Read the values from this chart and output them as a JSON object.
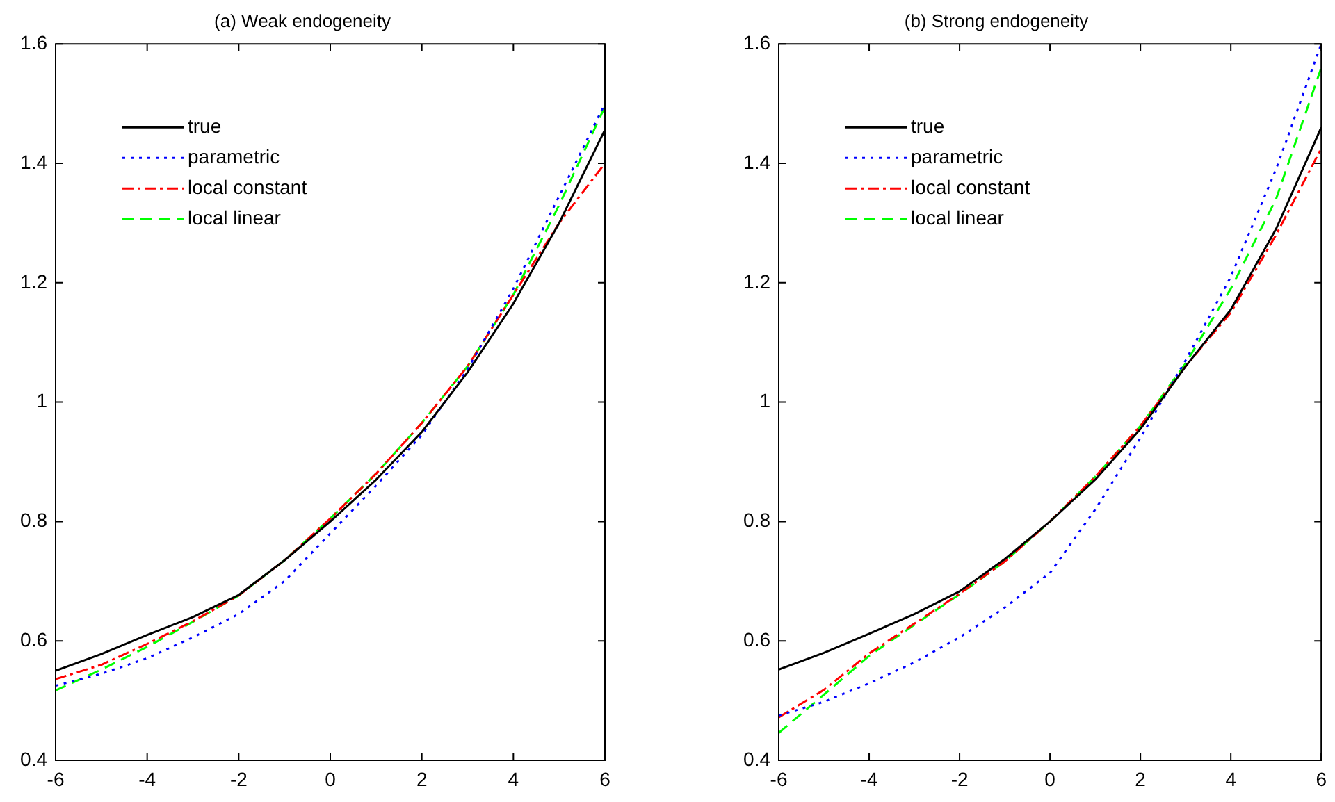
{
  "chart_data": [
    {
      "type": "line",
      "title": "(a) Weak endogeneity",
      "x": [
        -6,
        -5,
        -4,
        -3,
        -2,
        -1,
        0,
        1,
        2,
        3,
        4,
        5,
        6
      ],
      "xlim": [
        -6,
        6
      ],
      "xticks": [
        -6,
        -4,
        -2,
        0,
        2,
        4,
        6
      ],
      "ylim": [
        0.4,
        1.6
      ],
      "yticks": [
        0.4,
        0.6,
        0.8,
        1,
        1.2,
        1.4,
        1.6
      ],
      "grid": false,
      "legend": "top left",
      "marker": "none",
      "series": [
        {
          "name": "true",
          "color": "#000000",
          "line_style": "solid",
          "values": [
            0.55,
            0.578,
            0.61,
            0.64,
            0.677,
            0.735,
            0.8,
            0.87,
            0.95,
            1.05,
            1.165,
            1.3,
            1.456
          ]
        },
        {
          "name": "parametric",
          "color": "#0000ff",
          "line_style": "dotted",
          "values": [
            0.525,
            0.545,
            0.571,
            0.606,
            0.645,
            0.7,
            0.78,
            0.86,
            0.945,
            1.055,
            1.19,
            1.345,
            1.5
          ]
        },
        {
          "name": "local constant",
          "color": "#ff0000",
          "line_style": "dashdot",
          "values": [
            0.536,
            0.56,
            0.595,
            0.633,
            0.676,
            0.735,
            0.805,
            0.88,
            0.965,
            1.06,
            1.18,
            1.3,
            1.4
          ]
        },
        {
          "name": "local linear",
          "color": "#00ff00",
          "line_style": "dashed",
          "values": [
            0.517,
            0.552,
            0.59,
            0.632,
            0.676,
            0.735,
            0.805,
            0.88,
            0.965,
            1.06,
            1.18,
            1.33,
            1.495
          ]
        }
      ]
    },
    {
      "type": "line",
      "title": "(b) Strong endogeneity",
      "x": [
        -6,
        -5,
        -4,
        -3,
        -2,
        -1,
        0,
        1,
        2,
        3,
        4,
        5,
        6
      ],
      "xlim": [
        -6,
        6
      ],
      "xticks": [
        -6,
        -4,
        -2,
        0,
        2,
        4,
        6
      ],
      "ylim": [
        0.4,
        1.6
      ],
      "yticks": [
        0.4,
        0.6,
        0.8,
        1,
        1.2,
        1.4,
        1.6
      ],
      "grid": false,
      "legend": "top left",
      "marker": "none",
      "series": [
        {
          "name": "true",
          "color": "#000000",
          "line_style": "solid",
          "values": [
            0.552,
            0.58,
            0.612,
            0.645,
            0.683,
            0.737,
            0.8,
            0.87,
            0.955,
            1.06,
            1.155,
            1.29,
            1.46
          ]
        },
        {
          "name": "parametric",
          "color": "#0000ff",
          "line_style": "dotted",
          "values": [
            0.475,
            0.498,
            0.529,
            0.564,
            0.606,
            0.656,
            0.714,
            0.82,
            0.94,
            1.07,
            1.21,
            1.39,
            1.6
          ]
        },
        {
          "name": "local constant",
          "color": "#ff0000",
          "line_style": "dashdot",
          "values": [
            0.472,
            0.518,
            0.579,
            0.629,
            0.679,
            0.733,
            0.8,
            0.875,
            0.96,
            1.06,
            1.15,
            1.28,
            1.425
          ]
        },
        {
          "name": "local linear",
          "color": "#00ff00",
          "line_style": "dashed",
          "values": [
            0.446,
            0.51,
            0.575,
            0.627,
            0.678,
            0.733,
            0.8,
            0.875,
            0.96,
            1.065,
            1.19,
            1.34,
            1.56
          ]
        }
      ]
    }
  ]
}
